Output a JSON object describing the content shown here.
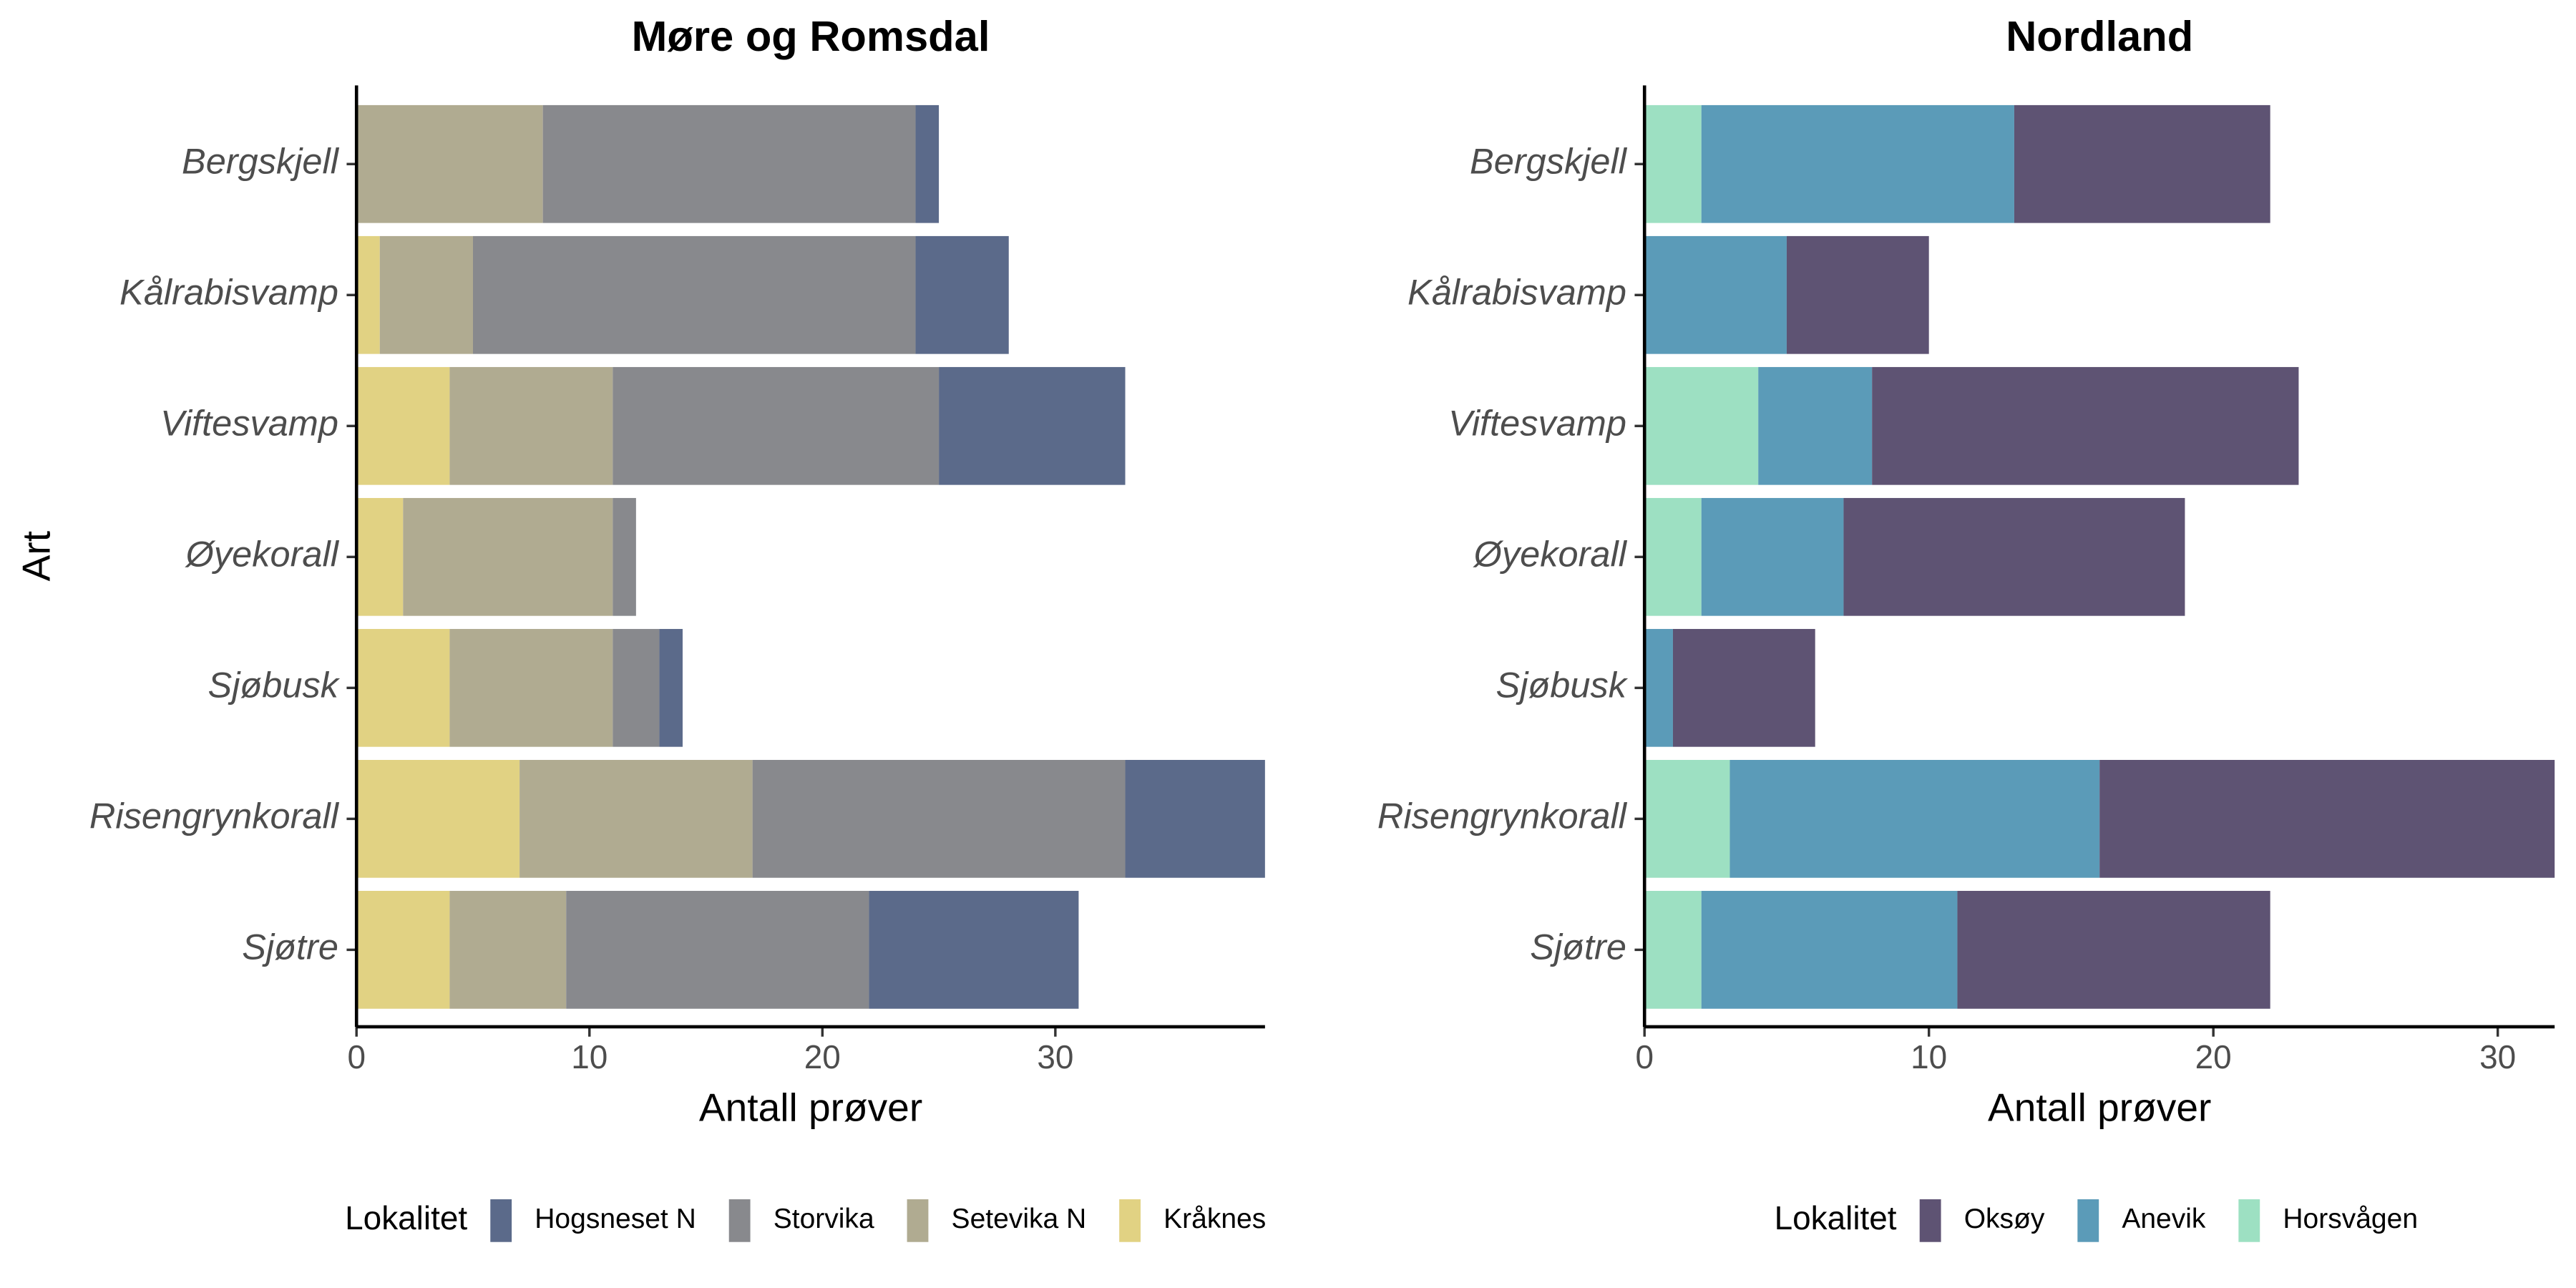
{
  "chart_data": [
    {
      "type": "stacked-barh",
      "title": "Møre og Romsdal",
      "x_label": "Antall prøver",
      "y_label": "Art",
      "legend_title": "Lokalitet",
      "categories": [
        "Bergskjell",
        "Kålrabisvamp",
        "Viftesvamp",
        "Øyekorall",
        "Sjøbusk",
        "Risengrynkorall",
        "Sjøtre"
      ],
      "series": [
        {
          "name": "Hogsneset N",
          "color": "#5b6a8a",
          "values": [
            1,
            4,
            8,
            0,
            1,
            6,
            9
          ]
        },
        {
          "name": "Storvika",
          "color": "#88898d",
          "values": [
            16,
            19,
            14,
            1,
            2,
            16,
            13
          ]
        },
        {
          "name": "Setevika N",
          "color": "#b0ab91",
          "values": [
            8,
            4,
            7,
            9,
            7,
            10,
            5
          ]
        },
        {
          "name": "Kråknes",
          "color": "#e1d283",
          "values": [
            0,
            1,
            4,
            2,
            4,
            7,
            4
          ]
        }
      ],
      "xlim": [
        0,
        39
      ],
      "xticks": [
        0,
        10,
        20,
        30
      ]
    },
    {
      "type": "stacked-barh",
      "title": "Nordland",
      "x_label": "Antall prøver",
      "legend_title": "Lokalitet",
      "categories": [
        "Bergskjell",
        "Kålrabisvamp",
        "Viftesvamp",
        "Øyekorall",
        "Sjøbusk",
        "Risengrynkorall",
        "Sjøtre"
      ],
      "series": [
        {
          "name": "Oksøy",
          "color": "#5e5373",
          "values": [
            9,
            5,
            15,
            12,
            5,
            16,
            11
          ]
        },
        {
          "name": "Anevik",
          "color": "#5b9bb8",
          "values": [
            11,
            5,
            4,
            5,
            1,
            13,
            9
          ]
        },
        {
          "name": "Horsvågen",
          "color": "#9de0c2",
          "values": [
            2,
            0,
            4,
            2,
            0,
            3,
            2
          ]
        }
      ],
      "xlim": [
        0,
        32
      ],
      "xticks": [
        0,
        10,
        20,
        30
      ]
    }
  ]
}
